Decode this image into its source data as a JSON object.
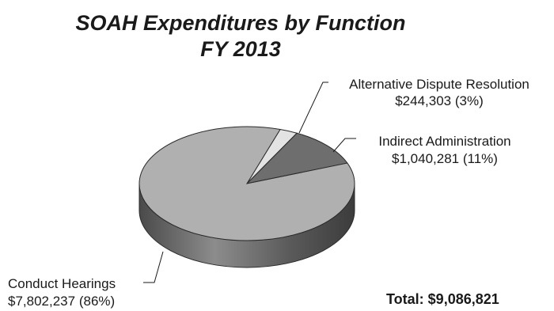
{
  "chart_data": {
    "type": "pie",
    "title": "SOAH Expenditures by Function",
    "subtitle": "FY 2013",
    "slices": [
      {
        "name": "Conduct Hearings",
        "value": 7802237,
        "value_label": "$7,802,237",
        "percent_label": "(86%)",
        "color": "#b0b0b0"
      },
      {
        "name": "Alternative Dispute Resolution",
        "value": 244303,
        "value_label": "$244,303",
        "percent_label": "(3%)",
        "color": "#e3e3e3"
      },
      {
        "name": "Indirect Administration",
        "value": 1040281,
        "value_label": "$1,040,281",
        "percent_label": "(11%)",
        "color": "#6e6e6e"
      }
    ],
    "total_prefix": "Total:",
    "total_value": "$9,086,821"
  }
}
